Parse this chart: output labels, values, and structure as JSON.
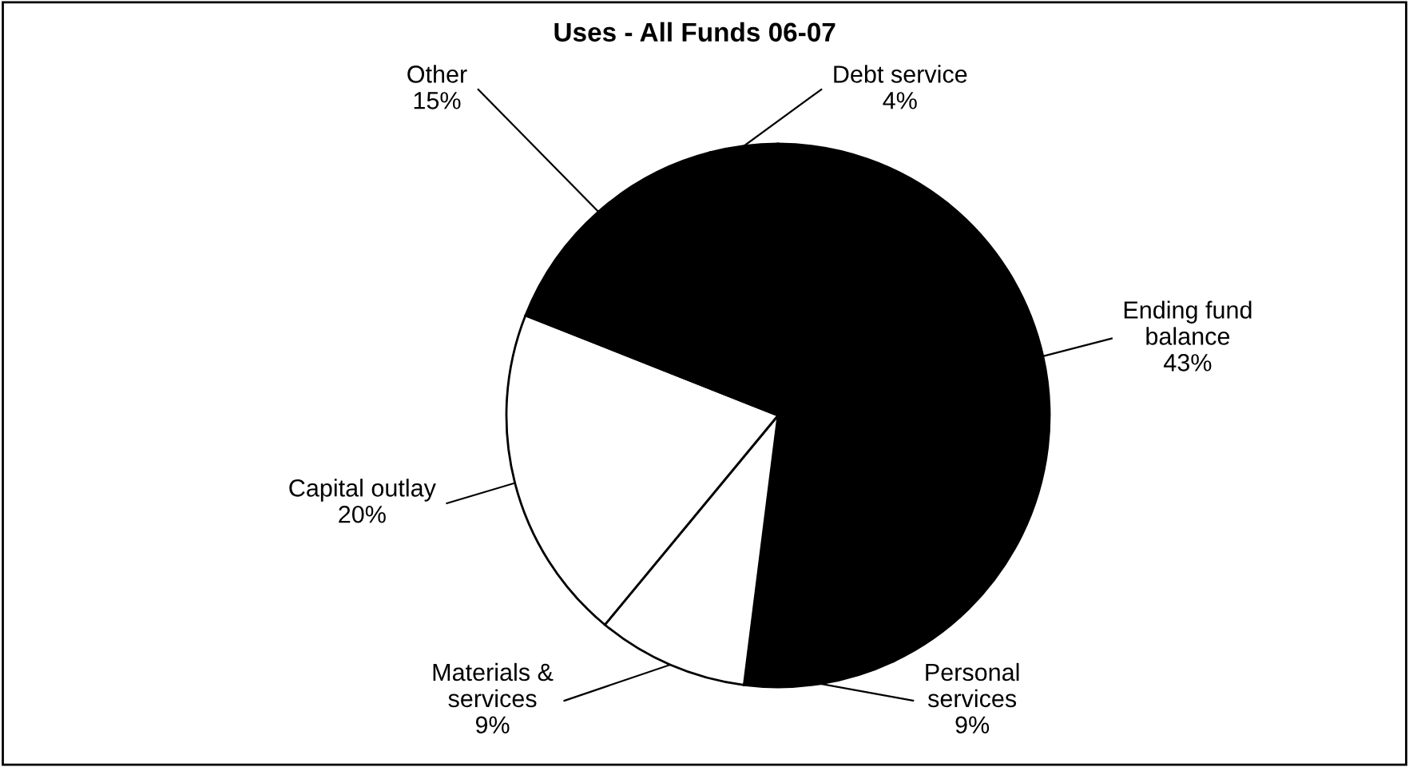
{
  "chart_data": {
    "type": "pie",
    "title": "Uses - All Funds 06-07",
    "categories": [
      "Debt service",
      "Ending fund\nbalance",
      "Personal\nservices",
      "Materials &\nservices",
      "Capital outlay",
      "Other"
    ],
    "values": [
      4,
      43,
      9,
      9,
      20,
      15
    ],
    "value_labels": [
      "4%",
      "43%",
      "9%",
      "9%",
      "20%",
      "15%"
    ],
    "colors": [
      "#000000",
      "#000000",
      "#000000",
      "#ffffff",
      "#ffffff",
      "#000000"
    ],
    "legend": false
  }
}
